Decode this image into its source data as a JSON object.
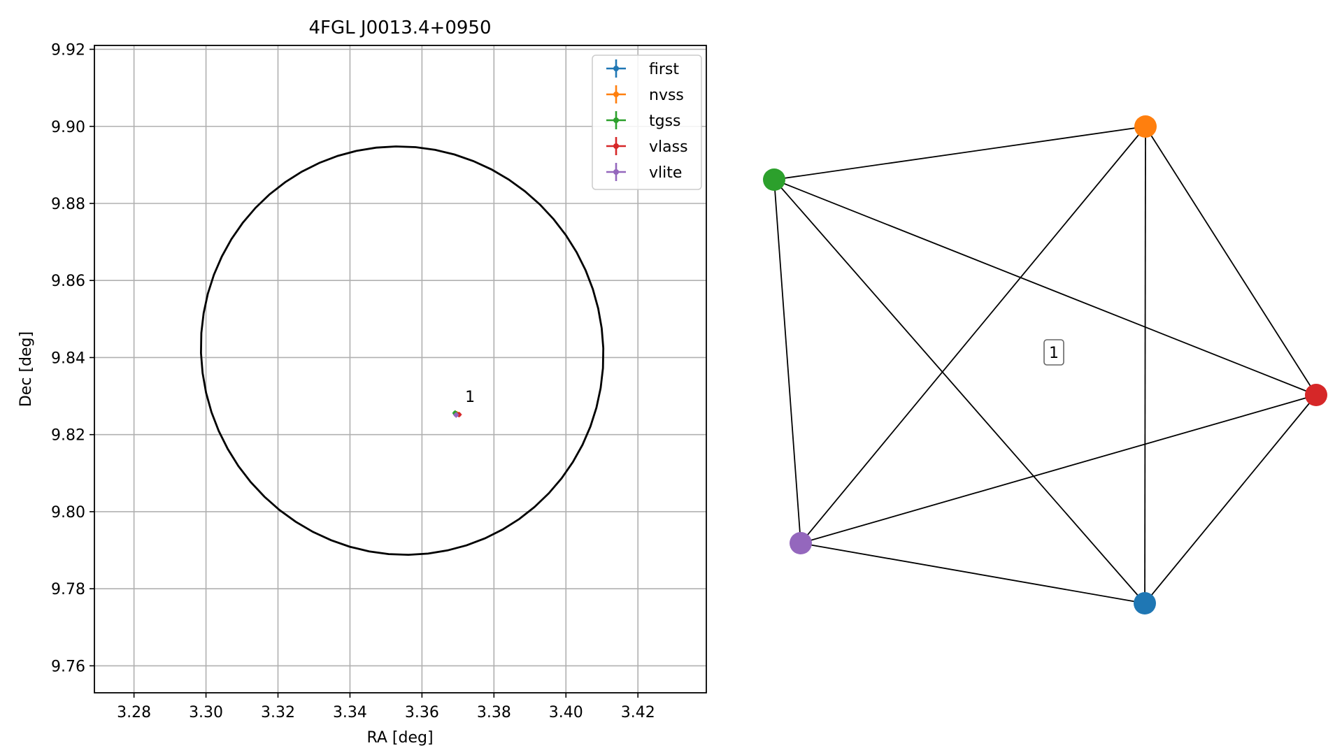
{
  "chart_data": [
    {
      "type": "scatter",
      "title": "4FGL J0013.4+0950",
      "xlabel": "RA [deg]",
      "ylabel": "Dec [deg]",
      "xlim": [
        3.269,
        3.439
      ],
      "ylim": [
        9.753,
        9.921
      ],
      "xticks": [
        3.28,
        3.3,
        3.32,
        3.34,
        3.36,
        3.38,
        3.4,
        3.42
      ],
      "xtick_labels": [
        "3.28",
        "3.30",
        "3.32",
        "3.34",
        "3.36",
        "3.38",
        "3.40",
        "3.42"
      ],
      "yticks": [
        9.76,
        9.78,
        9.8,
        9.82,
        9.84,
        9.86,
        9.88,
        9.9,
        9.92
      ],
      "ytick_labels": [
        "9.76",
        "9.78",
        "9.80",
        "9.82",
        "9.84",
        "9.86",
        "9.88",
        "9.90",
        "9.92"
      ],
      "grid": true,
      "legend_position": "top-right",
      "ellipse": {
        "center_ra": 3.3545,
        "center_dec": 9.8418,
        "radius_ra": 0.056,
        "radius_dec": 0.0529,
        "angle_deg": -10,
        "color": "#000000"
      },
      "series": [
        {
          "name": "first",
          "color": "#1f77b4",
          "ra": 3.3694,
          "dec": 9.8253
        },
        {
          "name": "nvss",
          "color": "#ff7f0e",
          "ra": 3.3697,
          "dec": 9.8254
        },
        {
          "name": "tgss",
          "color": "#2ca02c",
          "ra": 3.3692,
          "dec": 9.8256
        },
        {
          "name": "vlass",
          "color": "#d62728",
          "ra": 3.3703,
          "dec": 9.8252
        },
        {
          "name": "vlite",
          "color": "#9467bd",
          "ra": 3.3695,
          "dec": 9.8251
        }
      ],
      "annotations": [
        {
          "text": "1",
          "ra": 3.372,
          "dec": 9.8285
        }
      ]
    },
    {
      "type": "network",
      "nodes": [
        {
          "id": "first",
          "color": "#1f77b4"
        },
        {
          "id": "nvss",
          "color": "#ff7f0e"
        },
        {
          "id": "tgss",
          "color": "#2ca02c"
        },
        {
          "id": "vlass",
          "color": "#d62728"
        },
        {
          "id": "vlite",
          "color": "#9467bd"
        }
      ],
      "edges": [
        [
          "tgss",
          "nvss"
        ],
        [
          "tgss",
          "vlass"
        ],
        [
          "tgss",
          "vlite"
        ],
        [
          "tgss",
          "first"
        ],
        [
          "nvss",
          "vlass"
        ],
        [
          "nvss",
          "vlite"
        ],
        [
          "nvss",
          "first"
        ],
        [
          "vlass",
          "vlite"
        ],
        [
          "vlass",
          "first"
        ],
        [
          "vlite",
          "first"
        ]
      ],
      "label": "1"
    }
  ]
}
